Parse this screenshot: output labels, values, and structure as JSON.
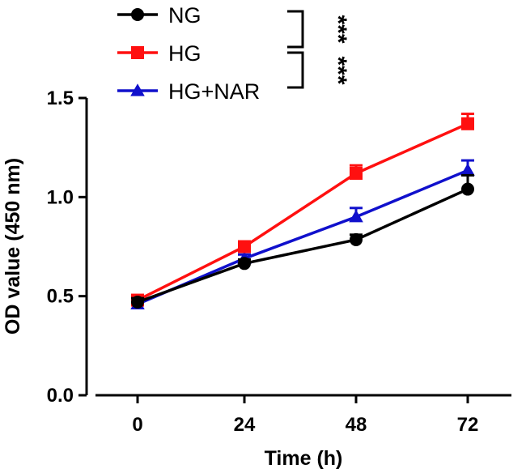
{
  "chart_data": {
    "type": "line",
    "x": [
      0,
      24,
      48,
      72
    ],
    "xlabel": "Time (h)",
    "ylabel": "OD value (450 nm)",
    "ylim": [
      0,
      1.5
    ],
    "yticks": [
      "0.0",
      "0.5",
      "1.0",
      "1.5"
    ],
    "xticks": [
      "0",
      "24",
      "48",
      "72"
    ],
    "grid": false,
    "legend_position": "top",
    "series": [
      {
        "name": "NG",
        "color": "#000000",
        "marker": "circle",
        "values": [
          0.47,
          0.665,
          0.785,
          1.04
        ],
        "errors": [
          0.02,
          0.02,
          0.025,
          0.07
        ]
      },
      {
        "name": "HG",
        "color": "#ff1010",
        "marker": "square",
        "values": [
          0.48,
          0.75,
          1.12,
          1.37
        ],
        "errors": [
          0.02,
          0.025,
          0.04,
          0.05
        ]
      },
      {
        "name": "HG+NAR",
        "color": "#1010cc",
        "marker": "triangle",
        "values": [
          0.46,
          0.69,
          0.9,
          1.135
        ],
        "errors": [
          0.02,
          0.02,
          0.045,
          0.05
        ]
      }
    ],
    "significance": [
      {
        "between": [
          "NG",
          "HG"
        ],
        "label": "***"
      },
      {
        "between": [
          "HG",
          "HG+NAR"
        ],
        "label": "***"
      }
    ]
  }
}
